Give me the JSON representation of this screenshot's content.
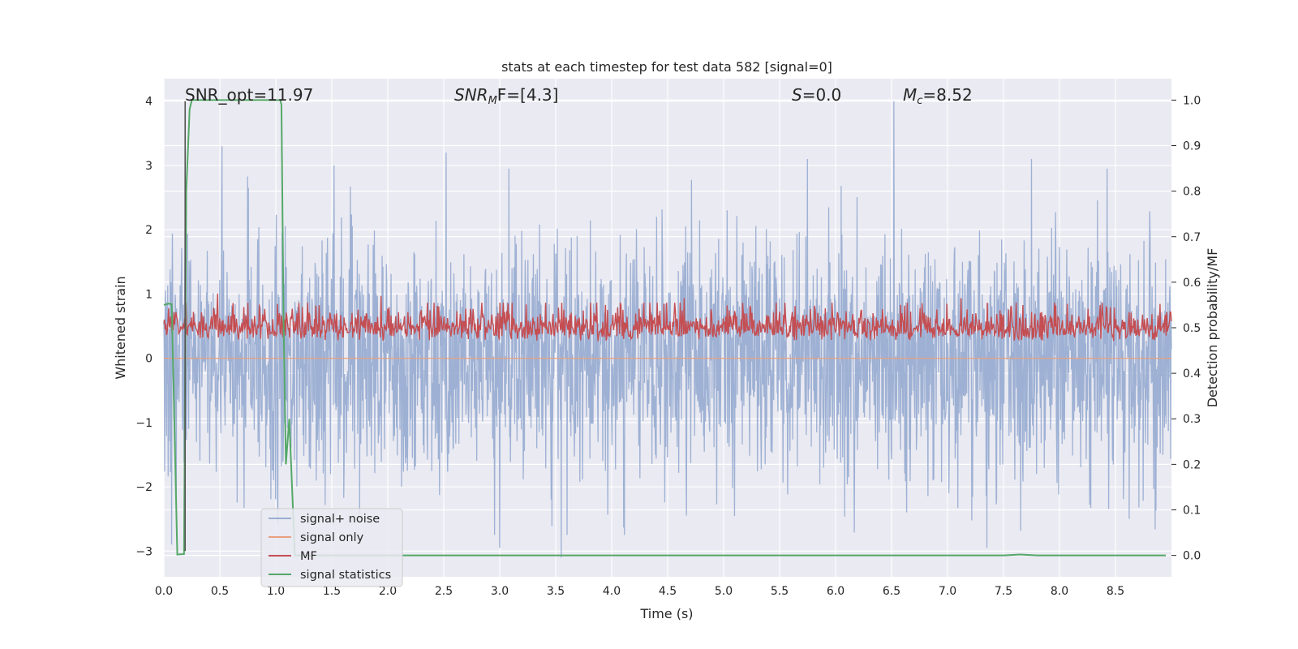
{
  "chart_data": {
    "type": "line",
    "title": "stats at each timestep for test data 582 [signal=0]",
    "xlabel": "Time (s)",
    "ylabel_left": "Whitened strain",
    "ylabel_right": "Detection probability/MF",
    "xlim": [
      0.0,
      9.0
    ],
    "ylim_left": [
      -3.4,
      4.35
    ],
    "ylim_right": [
      -0.047,
      1.047
    ],
    "x_ticks": [
      "0.0",
      "0.5",
      "1.0",
      "1.5",
      "2.0",
      "2.5",
      "3.0",
      "3.5",
      "4.0",
      "4.5",
      "5.0",
      "5.5",
      "6.0",
      "6.5",
      "7.0",
      "7.5",
      "8.0",
      "8.5"
    ],
    "y_left_ticks": [
      "−3",
      "−2",
      "−1",
      "0",
      "1",
      "2",
      "3",
      "4"
    ],
    "y_right_ticks": [
      "0.0",
      "0.1",
      "0.2",
      "0.3",
      "0.4",
      "0.5",
      "0.6",
      "0.7",
      "0.8",
      "0.9",
      "1.0"
    ],
    "grid": true,
    "background": "#eaeaf2",
    "annotations": {
      "snr_opt": "SNR_opt=11.97",
      "snr_mf_sym": "SNR",
      "snr_mf_sub": "M",
      "snr_mf_rest": "F=[4.3]",
      "s_sym": "S",
      "s_rest": "=0.0",
      "mc_sym": "M",
      "mc_sub": "c",
      "mc_rest": "=8.52"
    },
    "marker_line": {
      "x": 0.19,
      "y_top": 4.0,
      "y_bottom": -3.0,
      "color": "#555555"
    },
    "series": [
      {
        "name": "signal+ noise",
        "axis": "left",
        "color": "#9aaed2",
        "description_range": [
          -3.1,
          4.0
        ],
        "peaks": [
          {
            "x": 0.07,
            "y": -2.9
          },
          {
            "x": 0.52,
            "y": 3.3
          },
          {
            "x": 1.52,
            "y": 3.0
          },
          {
            "x": 2.52,
            "y": 3.2
          },
          {
            "x": 3.0,
            "y": -2.95
          },
          {
            "x": 3.55,
            "y": -3.1
          },
          {
            "x": 5.75,
            "y": 3.1
          },
          {
            "x": 6.52,
            "y": 4.0
          },
          {
            "x": 7.35,
            "y": -2.95
          },
          {
            "x": 7.75,
            "y": 3.1
          }
        ]
      },
      {
        "name": "signal only",
        "axis": "left",
        "color": "#e8a07f",
        "x": [
          0.0,
          9.0
        ],
        "y": [
          0.0,
          0.0
        ]
      },
      {
        "name": "MF",
        "axis": "right",
        "color": "#c44e52",
        "description_range": [
          0.44,
          0.59
        ],
        "peaks": [
          {
            "x": 0.48,
            "y": 0.575
          },
          {
            "x": 1.94,
            "y": 0.57
          },
          {
            "x": 4.65,
            "y": 0.565
          },
          {
            "x": 7.12,
            "y": 0.565
          }
        ]
      },
      {
        "name": "signal statistics",
        "axis": "right",
        "color": "#55a868",
        "x": [
          0.0,
          0.04,
          0.07,
          0.12,
          0.18,
          0.2,
          0.23,
          0.25,
          1.04,
          1.05,
          1.07,
          1.09,
          1.12,
          1.17,
          2.0,
          3.0,
          4.0,
          5.0,
          6.0,
          7.0,
          7.5,
          7.65,
          7.8,
          8.0,
          8.5,
          8.95
        ],
        "y": [
          0.55,
          0.553,
          0.552,
          0.002,
          0.003,
          0.8,
          0.98,
          1.0,
          1.0,
          0.99,
          0.5,
          0.2,
          0.3,
          0.0,
          0.0,
          0.0,
          0.0,
          0.0,
          0.0,
          0.0,
          0.0,
          0.002,
          0.0,
          0.0,
          0.0,
          0.0
        ]
      }
    ],
    "legend": {
      "placement": "lower-left",
      "entries": [
        "signal+ noise",
        "signal only",
        "MF",
        "signal statistics"
      ]
    }
  }
}
